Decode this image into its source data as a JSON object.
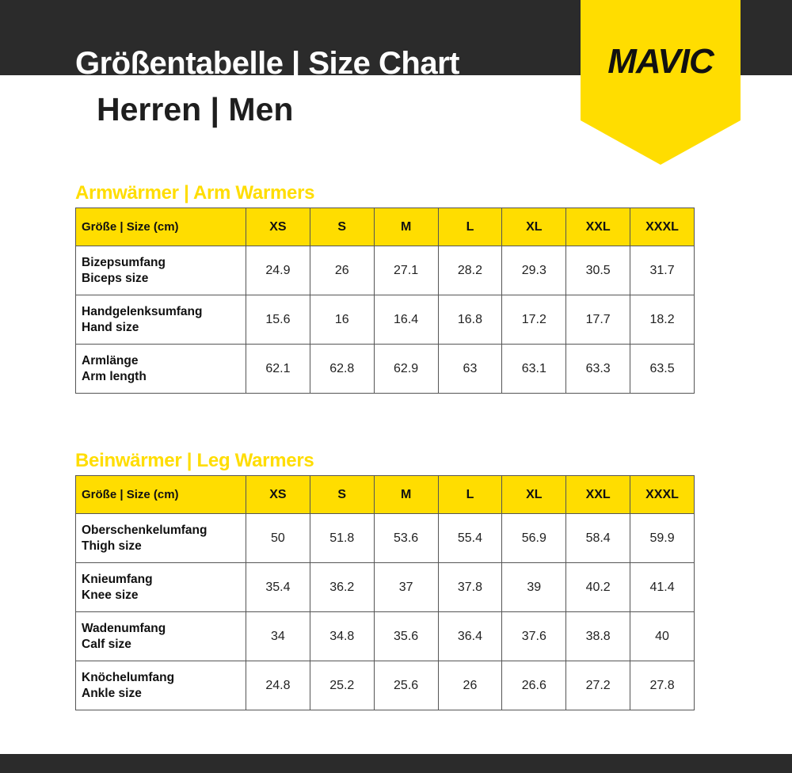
{
  "header": {
    "title": "Größentabelle | Size Chart",
    "subtitle": "Herren | Men",
    "logo_text": "MAVIC",
    "brand_color": "#ffdd00",
    "dark_color": "#2b2b2b"
  },
  "tables": [
    {
      "title": "Armwärmer | Arm Warmers",
      "header": [
        "Größe | Size (cm)",
        "XS",
        "S",
        "M",
        "L",
        "XL",
        "XXL",
        "XXXL"
      ],
      "rows": [
        {
          "de": "Bizepsumfang",
          "en": "Biceps size",
          "values": [
            "24.9",
            "26",
            "27.1",
            "28.2",
            "29.3",
            "30.5",
            "31.7"
          ]
        },
        {
          "de": "Handgelenksumfang",
          "en": "Hand size",
          "values": [
            "15.6",
            "16",
            "16.4",
            "16.8",
            "17.2",
            "17.7",
            "18.2"
          ]
        },
        {
          "de": "Armlänge",
          "en": "Arm length",
          "values": [
            "62.1",
            "62.8",
            "62.9",
            "63",
            "63.1",
            "63.3",
            "63.5"
          ]
        }
      ]
    },
    {
      "title": "Beinwärmer | Leg Warmers",
      "header": [
        "Größe | Size (cm)",
        "XS",
        "S",
        "M",
        "L",
        "XL",
        "XXL",
        "XXXL"
      ],
      "rows": [
        {
          "de": "Oberschenkelumfang",
          "en": "Thigh size",
          "values": [
            "50",
            "51.8",
            "53.6",
            "55.4",
            "56.9",
            "58.4",
            "59.9"
          ]
        },
        {
          "de": "Knieumfang",
          "en": "Knee size",
          "values": [
            "35.4",
            "36.2",
            "37",
            "37.8",
            "39",
            "40.2",
            "41.4"
          ]
        },
        {
          "de": "Wadenumfang",
          "en": "Calf size",
          "values": [
            "34",
            "34.8",
            "35.6",
            "36.4",
            "37.6",
            "38.8",
            "40"
          ]
        },
        {
          "de": "Knöchelumfang",
          "en": "Ankle size",
          "values": [
            "24.8",
            "25.2",
            "25.6",
            "26",
            "26.6",
            "27.2",
            "27.8"
          ]
        }
      ]
    }
  ]
}
